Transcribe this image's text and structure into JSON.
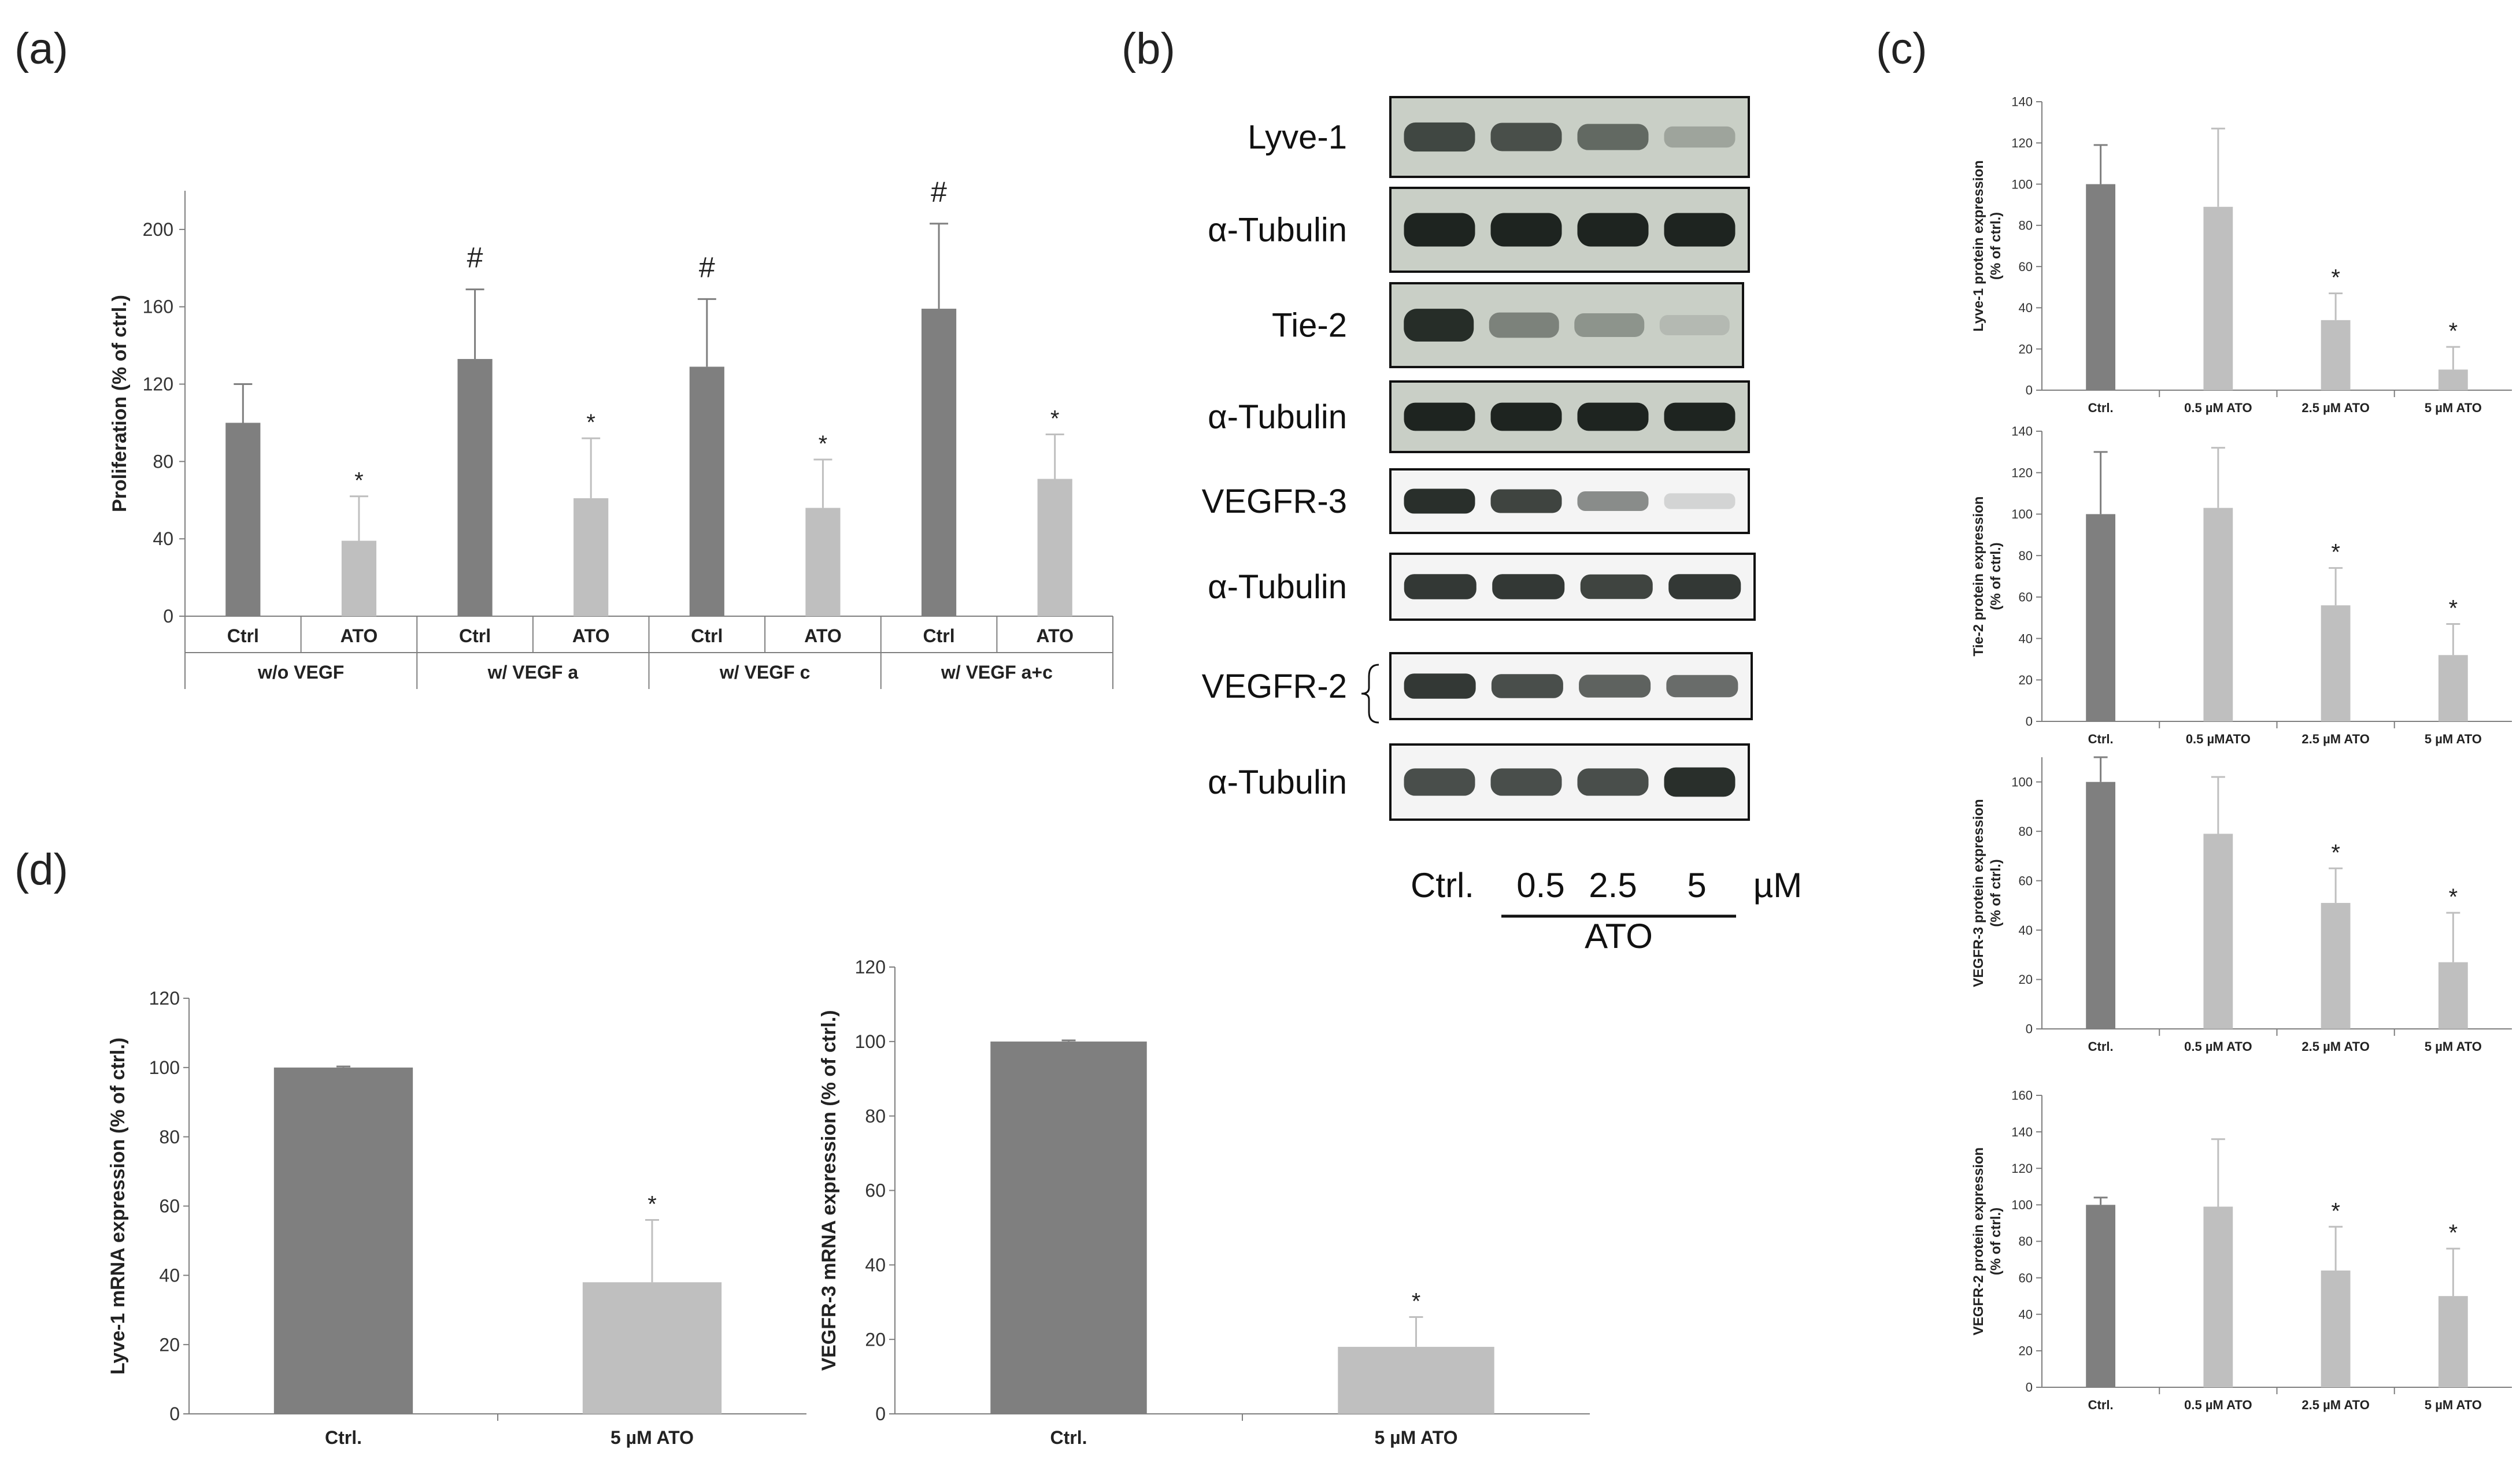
{
  "panels": {
    "a": "(a)",
    "b": "(b)",
    "c": "(c)",
    "d": "(d)"
  },
  "colors": {
    "ctrl": "#7f7f7f",
    "treated": "#bfbfbf",
    "axis": "#7f7f7f",
    "blot_bg": "#c9cfc6",
    "band": "#1e2420"
  },
  "chart_data": [
    {
      "id": "a",
      "type": "bar",
      "ylabel": "Proliferation (% of ctrl.)",
      "ylim": [
        0,
        220
      ],
      "yticks": [
        0,
        40,
        80,
        120,
        160,
        200
      ],
      "groups": [
        "w/o VEGF",
        "w/ VEGF a",
        "w/ VEGF c",
        "w/ VEGF a+c"
      ],
      "sublabels": [
        "Ctrl",
        "ATO"
      ],
      "values": [
        100,
        39,
        133,
        61,
        129,
        56,
        159,
        71
      ],
      "errors": [
        20,
        23,
        36,
        31,
        35,
        25,
        44,
        23
      ],
      "marks": [
        "",
        "*",
        "#",
        "*",
        "#",
        "*",
        "#",
        "*"
      ]
    },
    {
      "id": "c1",
      "type": "bar",
      "ylabel": [
        "Lyve-1 protein expression",
        "(% of ctrl.)"
      ],
      "ylim": [
        0,
        140
      ],
      "yticks": [
        0,
        20,
        40,
        60,
        80,
        100,
        120,
        140
      ],
      "categories": [
        "Ctrl.",
        "0.5 µM ATO",
        "2.5 µM ATO",
        "5 µM ATO"
      ],
      "values": [
        100,
        89,
        34,
        10
      ],
      "errors": [
        19,
        38,
        13,
        11
      ],
      "marks": [
        "",
        "",
        "*",
        "*"
      ]
    },
    {
      "id": "c2",
      "type": "bar",
      "ylabel": [
        "Tie-2 protein expression",
        "(% of ctrl.)"
      ],
      "ylim": [
        0,
        140
      ],
      "yticks": [
        0,
        20,
        40,
        60,
        80,
        100,
        120,
        140
      ],
      "categories": [
        "Ctrl.",
        "0.5 µMATO",
        "2.5 µM ATO",
        "5 µM ATO"
      ],
      "values": [
        100,
        103,
        56,
        32
      ],
      "errors": [
        30,
        29,
        18,
        15
      ],
      "marks": [
        "",
        "",
        "*",
        "*"
      ]
    },
    {
      "id": "c3",
      "type": "bar",
      "ylabel": [
        "VEGFR-3 protein expression",
        "(% of ctrl.)"
      ],
      "ylim": [
        0,
        110
      ],
      "yticks": [
        0,
        20,
        40,
        60,
        80,
        100
      ],
      "categories": [
        "Ctrl.",
        "0.5 µM ATO",
        "2.5 µM ATO",
        "5 µM ATO"
      ],
      "values": [
        100,
        79,
        51,
        27
      ],
      "errors": [
        10,
        23,
        14,
        20
      ],
      "marks": [
        "",
        "",
        "*",
        "*"
      ]
    },
    {
      "id": "c4",
      "type": "bar",
      "ylabel": [
        "VEGFR-2 protein expression",
        "(% of ctrl.)"
      ],
      "ylim": [
        0,
        160
      ],
      "yticks": [
        0,
        20,
        40,
        60,
        80,
        100,
        120,
        140,
        160
      ],
      "categories": [
        "Ctrl.",
        "0.5 µM ATO",
        "2.5 µM ATO",
        "5 µM ATO"
      ],
      "values": [
        100,
        99,
        64,
        50
      ],
      "errors": [
        4,
        37,
        24,
        26
      ],
      "marks": [
        "",
        "",
        "*",
        "*"
      ]
    },
    {
      "id": "d1",
      "type": "bar",
      "ylabel": "Lyve-1 mRNA expression (% of ctrl.)",
      "ylim": [
        0,
        120
      ],
      "yticks": [
        0,
        20,
        40,
        60,
        80,
        100,
        120
      ],
      "categories": [
        "Ctrl.",
        "5 µM ATO"
      ],
      "values": [
        100,
        38
      ],
      "errors": [
        0.3,
        18
      ],
      "marks": [
        "",
        "*"
      ]
    },
    {
      "id": "d2",
      "type": "bar",
      "ylabel": "VEGFR-3 mRNA expression (% of ctrl.)",
      "ylim": [
        0,
        120
      ],
      "yticks": [
        0,
        20,
        40,
        60,
        80,
        100,
        120
      ],
      "categories": [
        "Ctrl.",
        "5 µM ATO"
      ],
      "values": [
        100,
        18
      ],
      "errors": [
        0.3,
        8
      ],
      "marks": [
        "",
        "*"
      ]
    }
  ],
  "western_blot": {
    "rows": [
      {
        "label": "Lyve-1",
        "bands": [
          0.8,
          0.75,
          0.6,
          0.25
        ]
      },
      {
        "label": "α-Tubulin",
        "bands": [
          1,
          1,
          1,
          1
        ]
      },
      {
        "label": "Tie-2",
        "bands": [
          0.95,
          0.45,
          0.35,
          0.12
        ]
      },
      {
        "label": "α-Tubulin",
        "bands": [
          1,
          1,
          1,
          1
        ]
      },
      {
        "label": "VEGFR-3",
        "bands": [
          0.95,
          0.85,
          0.5,
          0.15
        ]
      },
      {
        "label": "α-Tubulin",
        "bands": [
          0.9,
          0.9,
          0.85,
          0.9
        ]
      },
      {
        "label": "VEGFR-2",
        "bands": [
          0.9,
          0.8,
          0.7,
          0.65
        ]
      },
      {
        "label": "α-Tubulin",
        "bands": [
          0.8,
          0.8,
          0.8,
          0.95
        ]
      }
    ],
    "dose_labels": [
      "Ctrl.",
      "0.5",
      "2.5",
      "5"
    ],
    "unit": "µM",
    "treatment": "ATO"
  }
}
